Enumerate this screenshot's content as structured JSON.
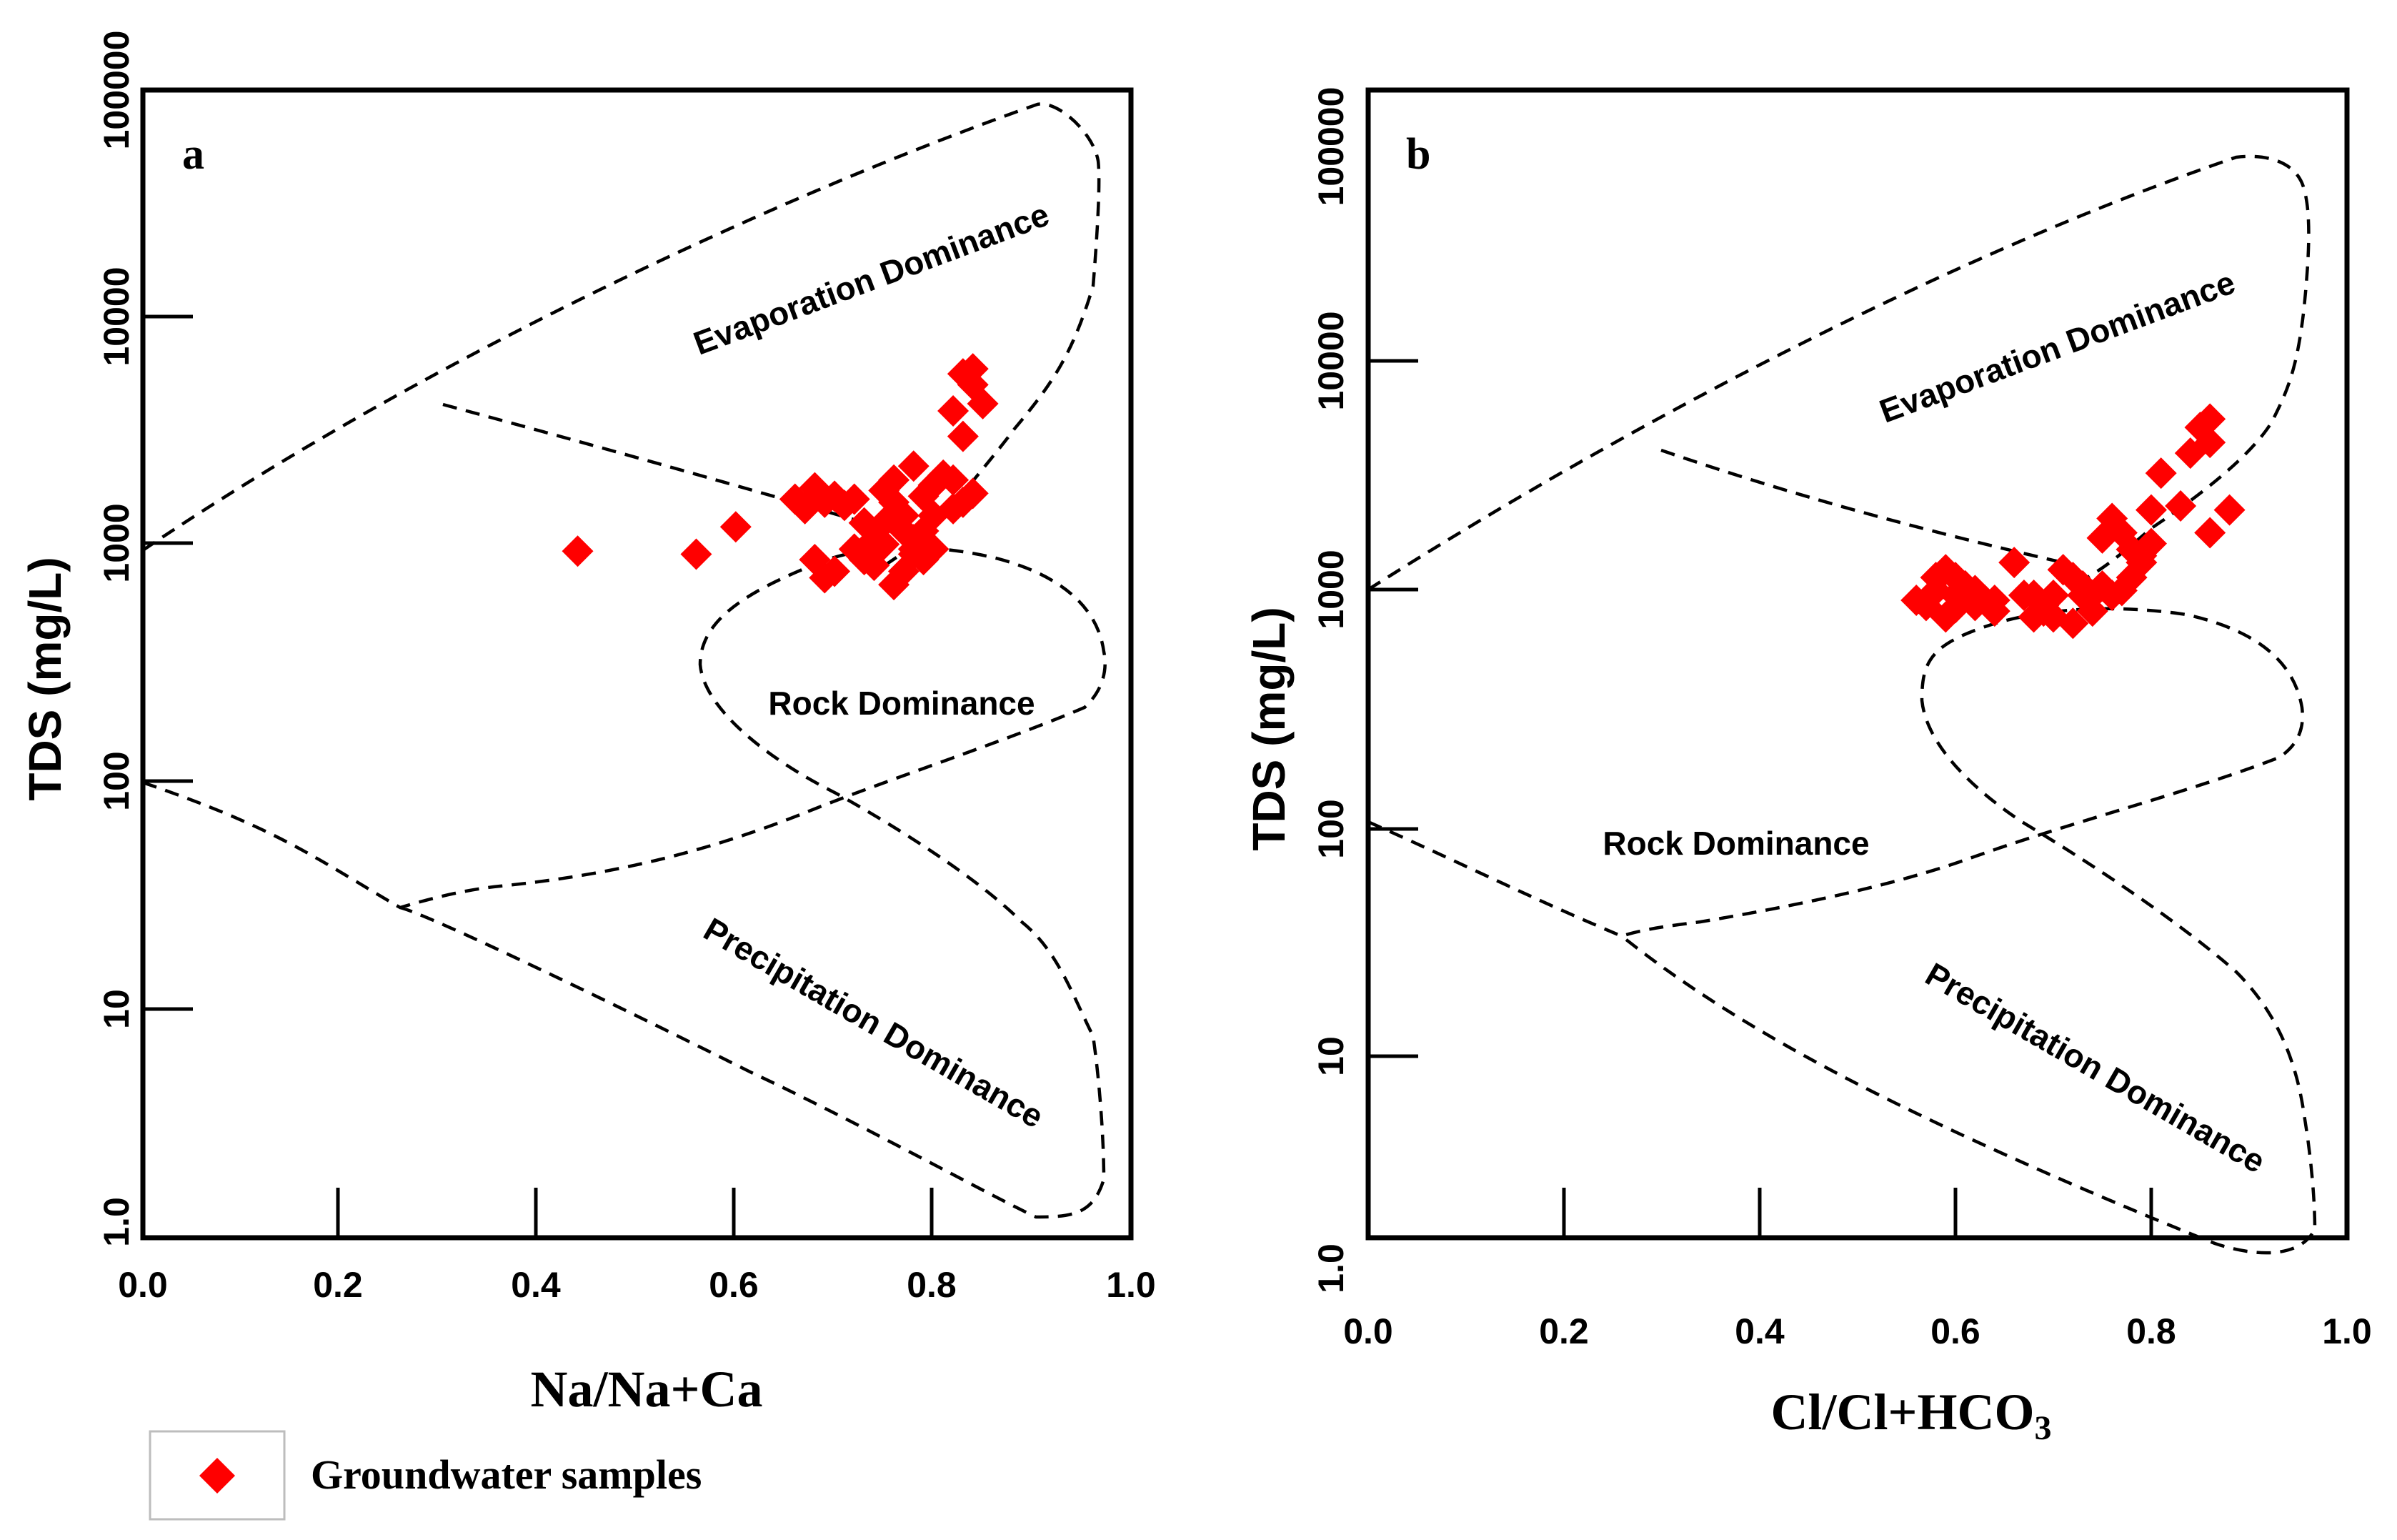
{
  "chart_data": [
    {
      "type": "scatter",
      "panel_label": "a",
      "xlabel": "Na/Na+Ca",
      "ylabel": "TDS (mg/L)",
      "x_ticks": [
        "0.0",
        "0.2",
        "0.4",
        "0.6",
        "0.8",
        "1.0"
      ],
      "y_ticks": [
        "1.0",
        "10",
        "100",
        "1000",
        "10000",
        "100000"
      ],
      "xlim": [
        0,
        1
      ],
      "ylim": [
        1,
        100000
      ],
      "yscale": "log",
      "regions": [
        "Evaporation Dominance",
        "Rock Dominance",
        "Precipitation Dominance"
      ],
      "series": [
        {
          "name": "Groundwater samples",
          "x": [
            0.44,
            0.56,
            0.6,
            0.66,
            0.67,
            0.68,
            0.68,
            0.69,
            0.7,
            0.71,
            0.72,
            0.73,
            0.74,
            0.75,
            0.76,
            0.77,
            0.78,
            0.79,
            0.8,
            0.82,
            0.83,
            0.84,
            0.85,
            0.83,
            0.84,
            0.82,
            0.79,
            0.76,
            0.74,
            0.78,
            0.8,
            0.77,
            0.75,
            0.73,
            0.7,
            0.69,
            0.68,
            0.72,
            0.76,
            0.78,
            0.81,
            0.83,
            0.84,
            0.77,
            0.79,
            0.75,
            0.78,
            0.8,
            0.82
          ],
          "y": [
            980,
            950,
            1250,
            1650,
            1500,
            1850,
            900,
            1600,
            1700,
            1550,
            1650,
            1300,
            1100,
            1800,
            2000,
            1400,
            2300,
            1200,
            1900,
            4000,
            5800,
            6100,
            4300,
            3100,
            5200,
            1500,
            1700,
            1600,
            850,
            950,
            1000,
            1200,
            1050,
            900,
            800,
            750,
            900,
            1000,
            700,
            1100,
            2100,
            1600,
            1750,
            800,
            900,
            1300,
            1000,
            1400,
            2000
          ]
        }
      ]
    },
    {
      "type": "scatter",
      "panel_label": "b",
      "xlabel": "Cl/Cl+HCO",
      "xlabel_subscript": "3",
      "ylabel": "TDS (mg/L)",
      "x_ticks": [
        "0.0",
        "0.2",
        "0.4",
        "0.6",
        "0.8",
        "1.0"
      ],
      "y_ticks": [
        "1.0",
        "10",
        "100",
        "1000",
        "10000",
        "100000"
      ],
      "xlim": [
        0,
        1
      ],
      "ylim": [
        1,
        100000
      ],
      "yscale": "log",
      "regions": [
        "Evaporation Dominance",
        "Rock Dominance",
        "Precipitation Dominance"
      ],
      "series": [
        {
          "name": "Groundwater samples",
          "x": [
            0.56,
            0.57,
            0.58,
            0.59,
            0.6,
            0.61,
            0.62,
            0.63,
            0.64,
            0.58,
            0.6,
            0.62,
            0.59,
            0.61,
            0.67,
            0.68,
            0.69,
            0.7,
            0.71,
            0.72,
            0.73,
            0.74,
            0.75,
            0.76,
            0.77,
            0.78,
            0.79,
            0.8,
            0.81,
            0.83,
            0.84,
            0.85,
            0.86,
            0.86,
            0.88,
            0.86,
            0.77,
            0.78,
            0.79,
            0.74,
            0.72,
            0.7,
            0.69,
            0.71,
            0.73,
            0.76,
            0.68,
            0.66,
            0.75,
            0.78,
            0.8,
            0.62,
            0.64,
            0.6
          ],
          "y": [
            950,
            900,
            1050,
            1300,
            1200,
            1100,
            1000,
            950,
            850,
            1200,
            1000,
            900,
            800,
            1100,
            1000,
            800,
            900,
            1000,
            1300,
            1200,
            1100,
            1000,
            1800,
            2200,
            1900,
            1600,
            1500,
            2400,
            3500,
            2500,
            4300,
            5600,
            6100,
            4800,
            2400,
            1900,
            1050,
            1200,
            1400,
            850,
            750,
            800,
            850,
            1300,
            1000,
            1000,
            1000,
            1400,
            1100,
            1600,
            1700,
            1050,
            950,
            880
          ]
        }
      ]
    }
  ],
  "legend": {
    "label": "Groundwater samples",
    "marker_color": "#ff0000"
  }
}
